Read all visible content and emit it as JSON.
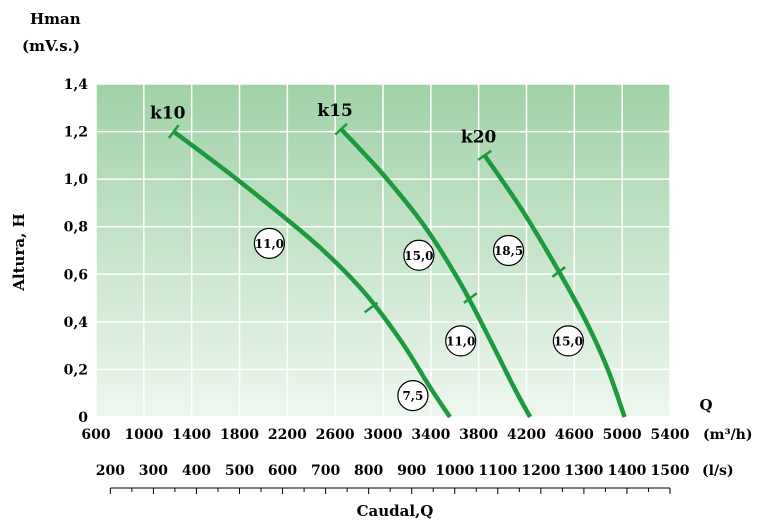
{
  "chart_data": {
    "type": "line",
    "y_axis": {
      "title_line1": "Hman",
      "title_line2": "(mV.s.)",
      "side_label": "Altura, H",
      "ticks": [
        "0",
        "0,2",
        "0,4",
        "0,6",
        "0,8",
        "1,0",
        "1,2",
        "1,4"
      ],
      "range": [
        0,
        1.4
      ]
    },
    "x_axis": {
      "label": "Q",
      "unit": "(m³/h)",
      "ticks": [
        "600",
        "1000",
        "1400",
        "1800",
        "2200",
        "2600",
        "3000",
        "3400",
        "3800",
        "4200",
        "4600",
        "5000",
        "5400"
      ],
      "range": [
        600,
        5400
      ]
    },
    "x_axis2": {
      "unit": "(l/s)",
      "ticks": [
        "200",
        "300",
        "400",
        "500",
        "600",
        "700",
        "800",
        "900",
        "1000",
        "1100",
        "1200",
        "1300",
        "1400",
        "1500"
      ],
      "title": "Caudal,Q"
    },
    "grid": true,
    "colors": {
      "curve": "#1e9a3e",
      "bg_top": "#9fd2a6",
      "bg_bottom": "#eef7ef",
      "grid": "#ffffff"
    },
    "series": [
      {
        "name": "k10",
        "points": [
          [
            1250,
            1.2
          ],
          [
            1700,
            1.03
          ],
          [
            2100,
            0.87
          ],
          [
            2500,
            0.7
          ],
          [
            2850,
            0.52
          ],
          [
            3150,
            0.32
          ],
          [
            3400,
            0.12
          ],
          [
            3560,
            0
          ]
        ],
        "segment_ticks": [
          [
            2900,
            0.46
          ]
        ],
        "powers": [
          {
            "label": "11,0",
            "x": 2050,
            "y": 0.73
          },
          {
            "label": "7,5",
            "x": 3250,
            "y": 0.09
          }
        ]
      },
      {
        "name": "k15",
        "points": [
          [
            2650,
            1.21
          ],
          [
            3000,
            1.02
          ],
          [
            3350,
            0.8
          ],
          [
            3650,
            0.56
          ],
          [
            3900,
            0.32
          ],
          [
            4100,
            0.12
          ],
          [
            4230,
            0
          ]
        ],
        "segment_ticks": [
          [
            3730,
            0.5
          ]
        ],
        "powers": [
          {
            "label": "15,0",
            "x": 3300,
            "y": 0.68
          },
          {
            "label": "11,0",
            "x": 3650,
            "y": 0.32
          }
        ]
      },
      {
        "name": "k20",
        "points": [
          [
            3850,
            1.1
          ],
          [
            4150,
            0.88
          ],
          [
            4450,
            0.63
          ],
          [
            4700,
            0.4
          ],
          [
            4880,
            0.2
          ],
          [
            5020,
            0
          ]
        ],
        "segment_ticks": [
          [
            4470,
            0.61
          ]
        ],
        "powers": [
          {
            "label": "18,5",
            "x": 4050,
            "y": 0.7
          },
          {
            "label": "15,0",
            "x": 4550,
            "y": 0.32
          }
        ]
      }
    ]
  }
}
